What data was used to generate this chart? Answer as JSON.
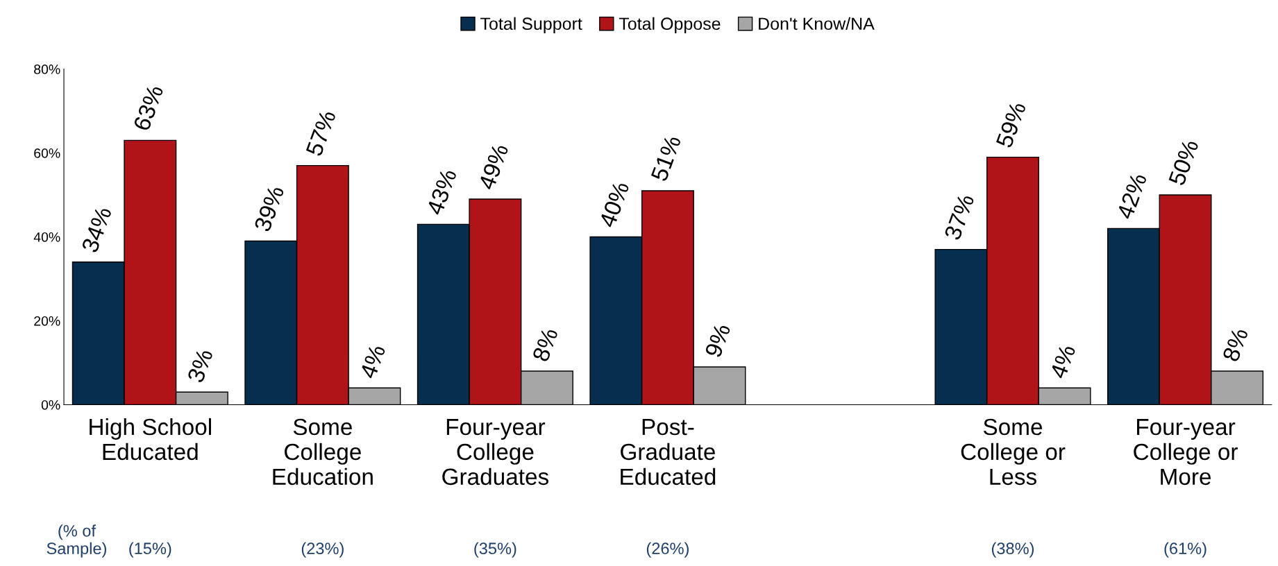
{
  "chart_data": {
    "type": "bar",
    "categories": [
      "High School\nEducated",
      "Some\nCollege\nEducation",
      "Four-year\nCollege\nGraduates",
      "Post-\nGraduate\nEducated",
      null,
      "Some\nCollege or\nLess",
      "Four-year\nCollege or\nMore"
    ],
    "series": [
      {
        "name": "Total Support",
        "color": "#052e4f",
        "values": [
          34,
          39,
          43,
          40,
          null,
          37,
          42
        ],
        "value_labels": [
          "34%",
          "39%",
          "43%",
          "40%",
          null,
          "37%",
          "42%"
        ]
      },
      {
        "name": "Total Oppose",
        "color": "#b01419",
        "values": [
          63,
          57,
          49,
          51,
          null,
          59,
          50
        ],
        "value_labels": [
          "63%",
          "57%",
          "49%",
          "51%",
          null,
          "59%",
          "50%"
        ]
      },
      {
        "name": "Don't Know/NA",
        "color": "#a6a6a6",
        "values": [
          3,
          4,
          8,
          9,
          null,
          4,
          8
        ],
        "value_labels": [
          "3%",
          "4%",
          "8%",
          "9%",
          null,
          "4%",
          "8%"
        ]
      }
    ],
    "ylim": [
      0,
      80
    ],
    "yticks": [
      {
        "value": 0,
        "label": "0%"
      },
      {
        "value": 20,
        "label": "20%"
      },
      {
        "value": 40,
        "label": "40%"
      },
      {
        "value": 60,
        "label": "60%"
      },
      {
        "value": 80,
        "label": "80%"
      }
    ],
    "grid": false,
    "legend": "top",
    "annotations": [
      "(% of\nSample)",
      "(15%)",
      "(23%)",
      "(35%)",
      "(26%)",
      "(38%)",
      "(61%)"
    ]
  }
}
